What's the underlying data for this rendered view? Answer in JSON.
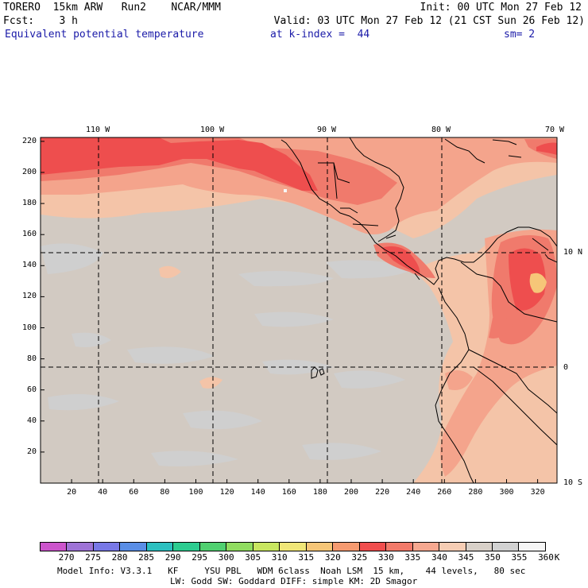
{
  "header": {
    "line1_left": "TORERO  15km ARW   Run2    NCAR/MMM",
    "line1_right": "Init: 00 UTC Mon 27 Feb 12",
    "line2_left": "Fcst:    3 h",
    "line2_right": "Valid: 03 UTC Mon 27 Feb 12 (21 CST Sun 26 Feb 12)",
    "field": "Equivalent potential temperature",
    "level": "at k-index =  44",
    "smooth": "sm= 2"
  },
  "map": {
    "lon_labels": [
      "110 W",
      "100 W",
      "90 W",
      "80 W",
      "70 W"
    ],
    "lat_labels": [
      "10 N",
      "0",
      "10 S"
    ],
    "y_ticks": [
      "20",
      "40",
      "60",
      "80",
      "100",
      "120",
      "140",
      "160",
      "180",
      "200",
      "220"
    ],
    "x_ticks": [
      "20",
      "40",
      "60",
      "80",
      "100",
      "120",
      "140",
      "160",
      "180",
      "200",
      "220",
      "240",
      "260",
      "280",
      "300",
      "320"
    ]
  },
  "legend": {
    "labels": [
      "270",
      "275",
      "280",
      "285",
      "290",
      "295",
      "300",
      "305",
      "310",
      "315",
      "320",
      "325",
      "330",
      "335",
      "340",
      "345",
      "350",
      "355",
      "360",
      "K"
    ],
    "colors": [
      "#cc55cc",
      "#9e73d6",
      "#7878e6",
      "#5a8ee6",
      "#2cc0c0",
      "#2ccc90",
      "#50d070",
      "#90dc60",
      "#c8e660",
      "#f0e678",
      "#f6c678",
      "#f59a70",
      "#f04e4e",
      "#f27a6a",
      "#f6a890",
      "#f6cdb4",
      "#d8d0c8",
      "#d2d2d2",
      "#f6f6f6"
    ]
  },
  "footer": {
    "line1": "Model Info: V3.3.1   KF     YSU PBL   WDM 6class  Noah LSM  15 km,    44 levels,   80 sec",
    "line2": "LW: Godd SW: Goddard DIFF: simple KM: 2D Smagor"
  }
}
